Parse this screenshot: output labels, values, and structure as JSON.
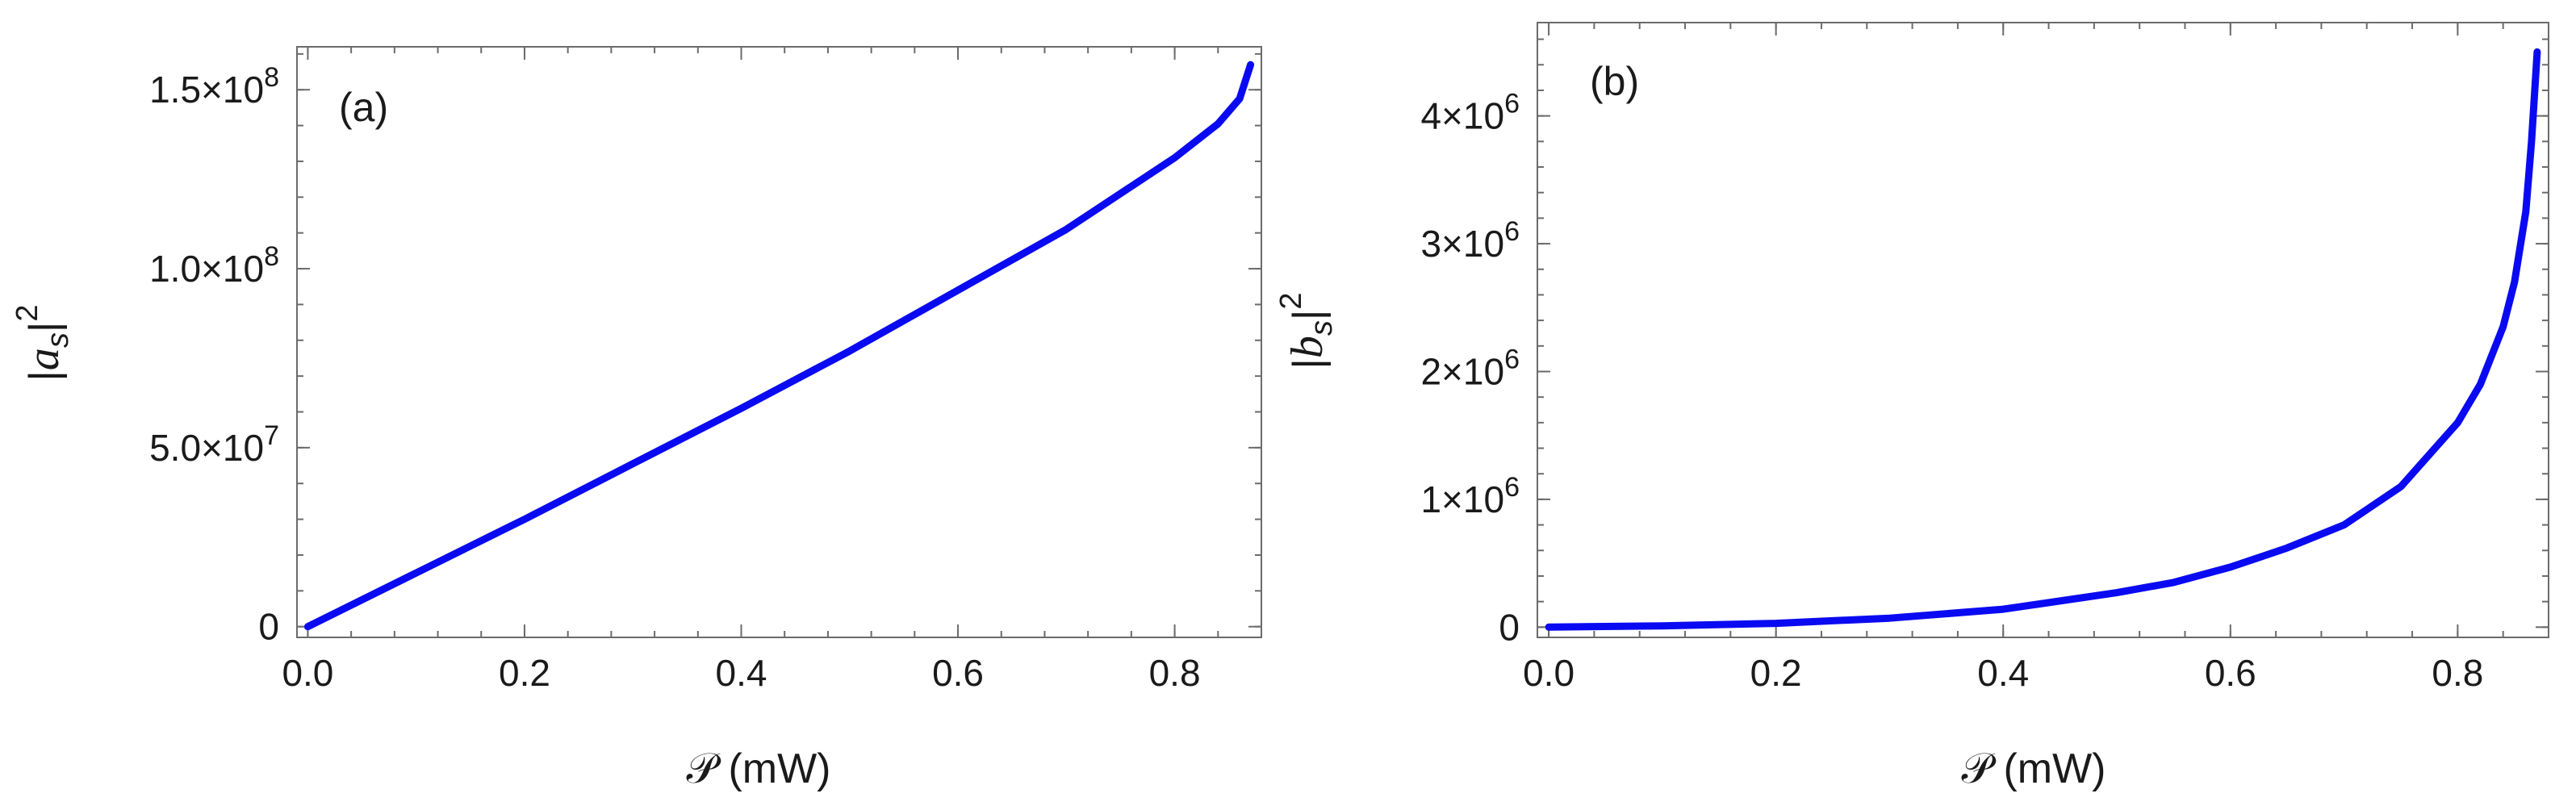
{
  "colors": {
    "curve": "#0a0af2"
  },
  "chart_data": [
    {
      "type": "line",
      "panel_label": "(a)",
      "xlabel": "𝒫 (mW)",
      "ylabel": "|a_s|^2",
      "ylabel_parts": {
        "open": "|",
        "main": "a",
        "sub": "s",
        "close": "|",
        "sup": "2"
      },
      "xlim": [
        -0.01,
        0.88
      ],
      "ylim": [
        -3000000,
        162000000
      ],
      "x_ticks": [
        {
          "value": 0.0,
          "label": "0.0"
        },
        {
          "value": 0.2,
          "label": "0.2"
        },
        {
          "value": 0.4,
          "label": "0.4"
        },
        {
          "value": 0.6,
          "label": "0.6"
        },
        {
          "value": 0.8,
          "label": "0.8"
        }
      ],
      "y_ticks": [
        {
          "value": 0,
          "mantissa": "0",
          "exponent": ""
        },
        {
          "value": 50000000,
          "mantissa": "5.0×10",
          "exponent": "7"
        },
        {
          "value": 100000000,
          "mantissa": "1.0×10",
          "exponent": "8"
        },
        {
          "value": 150000000,
          "mantissa": "1.5×10",
          "exponent": "8"
        }
      ],
      "series": [
        {
          "x": [
            0.0,
            0.1,
            0.2,
            0.3,
            0.4,
            0.5,
            0.6,
            0.7,
            0.75,
            0.8,
            0.84,
            0.86,
            0.87
          ],
          "y": [
            0,
            15000000,
            30000000,
            45500000,
            61000000,
            77000000,
            94000000,
            111000000,
            121000000,
            131000000,
            140500000,
            147500000,
            157000000
          ]
        }
      ]
    },
    {
      "type": "line",
      "panel_label": "(b)",
      "xlabel": "𝒫 (mW)",
      "ylabel": "|b_s|^2",
      "ylabel_parts": {
        "open": "|",
        "main": "b",
        "sub": "s",
        "close": "|",
        "sup": "2"
      },
      "xlim": [
        -0.01,
        0.88
      ],
      "ylim": [
        -80000,
        4730000
      ],
      "x_ticks": [
        {
          "value": 0.0,
          "label": "0.0"
        },
        {
          "value": 0.2,
          "label": "0.2"
        },
        {
          "value": 0.4,
          "label": "0.4"
        },
        {
          "value": 0.6,
          "label": "0.6"
        },
        {
          "value": 0.8,
          "label": "0.8"
        }
      ],
      "y_ticks": [
        {
          "value": 0,
          "mantissa": "0",
          "exponent": ""
        },
        {
          "value": 1000000,
          "mantissa": "1×10",
          "exponent": "6"
        },
        {
          "value": 2000000,
          "mantissa": "2×10",
          "exponent": "6"
        },
        {
          "value": 3000000,
          "mantissa": "3×10",
          "exponent": "6"
        },
        {
          "value": 4000000,
          "mantissa": "4×10",
          "exponent": "6"
        }
      ],
      "series": [
        {
          "x": [
            0.0,
            0.1,
            0.2,
            0.3,
            0.4,
            0.5,
            0.55,
            0.6,
            0.65,
            0.7,
            0.75,
            0.8,
            0.82,
            0.84,
            0.85,
            0.86,
            0.865,
            0.87
          ],
          "y": [
            0,
            10000,
            30000,
            70000,
            140000,
            270000,
            350000,
            470000,
            620000,
            800000,
            1100000,
            1600000,
            1900000,
            2350000,
            2700000,
            3250000,
            3800000,
            4500000
          ]
        }
      ]
    }
  ]
}
